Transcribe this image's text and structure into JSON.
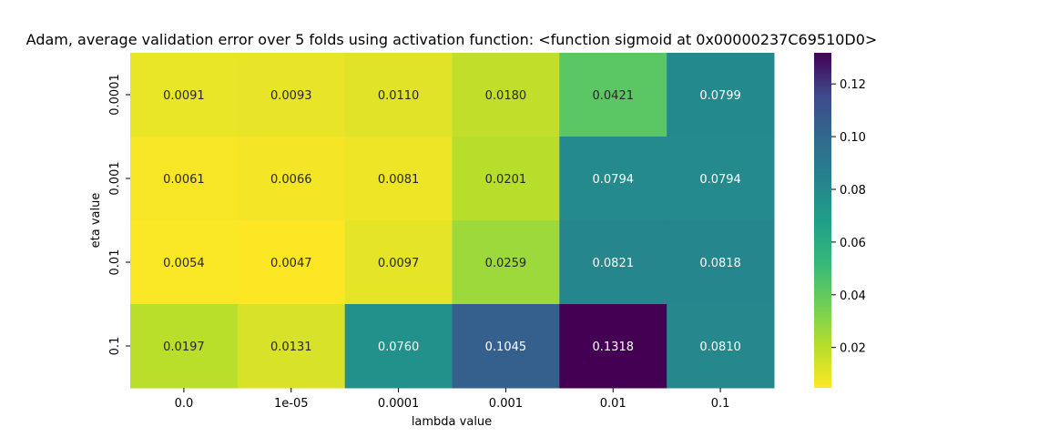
{
  "chart_data": {
    "type": "heatmap",
    "title": "Adam, average validation error over 5 folds using activation function: <function sigmoid at 0x00000237C69510D0>",
    "xlabel": "lambda value",
    "ylabel": "eta value",
    "x_categories": [
      "0.0",
      "1e-05",
      "0.0001",
      "0.001",
      "0.01",
      "0.1"
    ],
    "y_categories": [
      "0.0001",
      "0.001",
      "0.01",
      "0.1"
    ],
    "values": [
      [
        0.0091,
        0.0093,
        0.011,
        0.018,
        0.0421,
        0.0799
      ],
      [
        0.0061,
        0.0066,
        0.0081,
        0.0201,
        0.0794,
        0.0794
      ],
      [
        0.0054,
        0.0047,
        0.0097,
        0.0259,
        0.0821,
        0.0818
      ],
      [
        0.0197,
        0.0131,
        0.076,
        0.1045,
        0.1318,
        0.081
      ]
    ],
    "value_labels": [
      [
        "0.0091",
        "0.0093",
        "0.0110",
        "0.0180",
        "0.0421",
        "0.0799"
      ],
      [
        "0.0061",
        "0.0066",
        "0.0081",
        "0.0201",
        "0.0794",
        "0.0794"
      ],
      [
        "0.0054",
        "0.0047",
        "0.0097",
        "0.0259",
        "0.0821",
        "0.0818"
      ],
      [
        "0.0197",
        "0.0131",
        "0.0760",
        "0.1045",
        "0.1318",
        "0.0810"
      ]
    ],
    "colormap": "viridis_r",
    "color_range": [
      0.0047,
      0.1318
    ],
    "colorbar_ticks": [
      "0.02",
      "0.04",
      "0.06",
      "0.08",
      "0.10",
      "0.12"
    ],
    "colorbar_tick_values": [
      0.02,
      0.04,
      0.06,
      0.08,
      0.1,
      0.12
    ],
    "text_color_threshold": 0.07,
    "legend": "colorbar-right"
  }
}
